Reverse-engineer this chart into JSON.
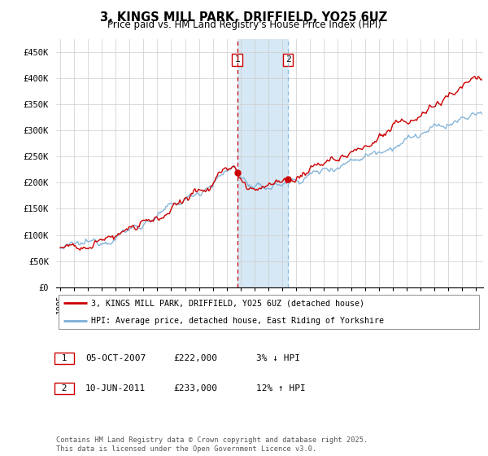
{
  "title": "3, KINGS MILL PARK, DRIFFIELD, YO25 6UZ",
  "subtitle": "Price paid vs. HM Land Registry's House Price Index (HPI)",
  "ylabel_ticks": [
    "£0",
    "£50K",
    "£100K",
    "£150K",
    "£200K",
    "£250K",
    "£300K",
    "£350K",
    "£400K",
    "£450K"
  ],
  "ytick_values": [
    0,
    50000,
    100000,
    150000,
    200000,
    250000,
    300000,
    350000,
    400000,
    450000
  ],
  "ylim": [
    0,
    475000
  ],
  "xlim_start": 1994.7,
  "xlim_end": 2025.5,
  "purchase1_date": 2007.76,
  "purchase1_price": 222000,
  "purchase1_label": "1",
  "purchase2_date": 2011.44,
  "purchase2_price": 233000,
  "purchase2_label": "2",
  "shade_xmin": 2007.76,
  "shade_xmax": 2011.44,
  "red_line_color": "#cc0000",
  "blue_line_color": "#7aaed6",
  "shade_color": "#d6e8f5",
  "grid_color": "#cccccc",
  "background_color": "#ffffff",
  "legend_text_red": "3, KINGS MILL PARK, DRIFFIELD, YO25 6UZ (detached house)",
  "legend_text_blue": "HPI: Average price, detached house, East Riding of Yorkshire",
  "annotation1_date": "05-OCT-2007",
  "annotation1_price": "£222,000",
  "annotation1_hpi": "3% ↓ HPI",
  "annotation2_date": "10-JUN-2011",
  "annotation2_price": "£233,000",
  "annotation2_hpi": "12% ↑ HPI",
  "footer": "Contains HM Land Registry data © Crown copyright and database right 2025.\nThis data is licensed under the Open Government Licence v3.0.",
  "xtick_years": [
    1995,
    1996,
    1997,
    1998,
    1999,
    2000,
    2001,
    2002,
    2003,
    2004,
    2005,
    2006,
    2007,
    2008,
    2009,
    2010,
    2011,
    2012,
    2013,
    2014,
    2015,
    2016,
    2017,
    2018,
    2019,
    2020,
    2021,
    2022,
    2023,
    2024,
    2025
  ]
}
